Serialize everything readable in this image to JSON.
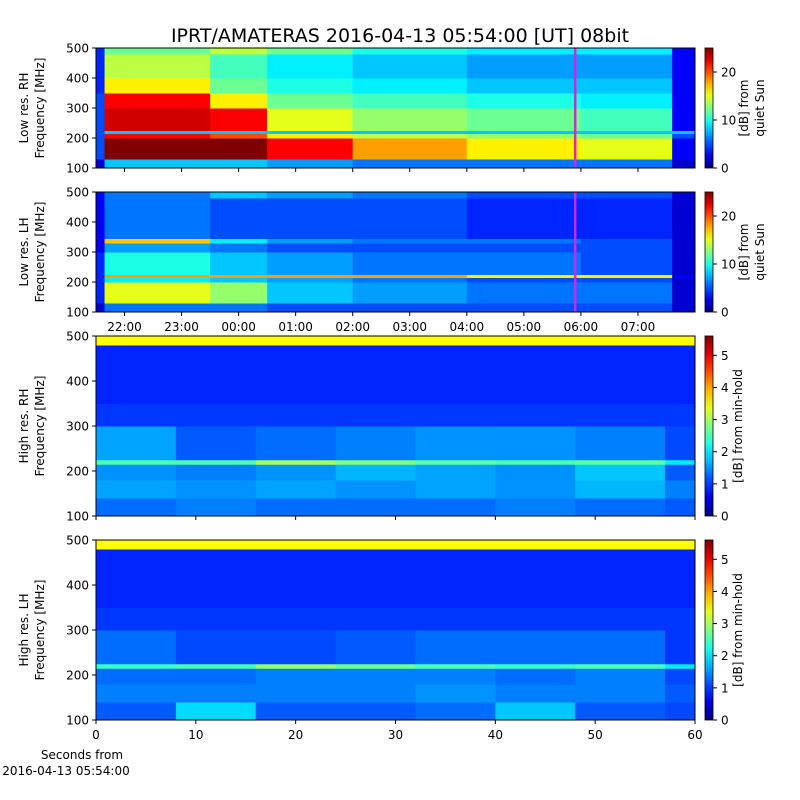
{
  "chart_data": [
    {
      "type": "heatmap",
      "title": "IPRT/AMATERAS 2016-04-13 05:54:00 [UT]   08bit",
      "ylabel": [
        "Low res. RH",
        "Frequency [MHz]"
      ],
      "colorbar_label": [
        "[dB] from",
        "quiet Sun"
      ],
      "xlim": [
        21.5,
        32
      ],
      "ylim": [
        100,
        500
      ],
      "yticks": [
        100,
        200,
        300,
        400,
        500
      ],
      "clim": [
        0,
        25
      ],
      "cticks": [
        0,
        10,
        20
      ],
      "colormap": "jet",
      "x_edges": [
        21.5,
        21.65,
        23.5,
        24.5,
        26,
        28,
        30,
        31.6,
        32
      ],
      "y_edges": [
        100,
        130,
        200,
        215,
        225,
        300,
        350,
        400,
        480,
        500
      ],
      "z": [
        [
          2,
          8,
          8,
          7,
          6,
          6,
          6,
          2
        ],
        [
          5,
          25,
          25,
          22,
          18,
          16,
          15,
          3
        ],
        [
          5,
          22,
          20,
          16,
          14,
          13,
          12,
          5
        ],
        [
          5,
          8,
          8,
          8,
          8,
          8,
          8,
          8
        ],
        [
          5,
          23,
          22,
          15,
          13,
          12,
          11,
          3
        ],
        [
          5,
          22,
          16,
          12,
          11,
          10,
          9,
          3
        ],
        [
          4,
          16,
          12,
          10,
          9,
          8,
          8,
          3
        ],
        [
          4,
          14,
          11,
          9,
          8,
          7,
          7,
          3
        ],
        [
          4,
          12,
          14,
          12,
          10,
          9,
          9,
          3
        ]
      ],
      "vline": 29.9,
      "vline_color": "#e020e0"
    },
    {
      "type": "heatmap",
      "ylabel": [
        "Low res. LH",
        "Frequency [MHz]"
      ],
      "colorbar_label": [
        "[dB] from",
        "quiet Sun"
      ],
      "xlim": [
        21.5,
        32
      ],
      "xticks": [
        {
          "value": 22,
          "label": "22:00"
        },
        {
          "value": 23,
          "label": "23:00"
        },
        {
          "value": 24,
          "label": "00:00"
        },
        {
          "value": 25,
          "label": "01:00"
        },
        {
          "value": 26,
          "label": "02:00"
        },
        {
          "value": 27,
          "label": "03:00"
        },
        {
          "value": 28,
          "label": "04:00"
        },
        {
          "value": 29,
          "label": "05:00"
        },
        {
          "value": 30,
          "label": "06:00"
        },
        {
          "value": 31,
          "label": "07:00"
        }
      ],
      "ylim": [
        100,
        500
      ],
      "yticks": [
        100,
        200,
        300,
        400,
        500
      ],
      "clim": [
        0,
        25
      ],
      "cticks": [
        0,
        10,
        20
      ],
      "colormap": "jet",
      "x_edges": [
        21.5,
        21.65,
        23.5,
        24.5,
        26,
        28,
        30,
        31.6,
        32
      ],
      "y_edges": [
        100,
        130,
        200,
        215,
        225,
        300,
        330,
        345,
        480,
        500
      ],
      "z": [
        [
          2,
          6,
          6,
          5,
          5,
          5,
          5,
          2
        ],
        [
          4,
          15,
          13,
          8,
          7,
          6,
          6,
          2
        ],
        [
          4,
          9,
          8,
          7,
          6,
          5,
          5,
          2
        ],
        [
          4,
          18,
          18,
          18,
          18,
          16,
          16,
          3
        ],
        [
          4,
          10,
          8,
          7,
          6,
          6,
          5,
          2
        ],
        [
          3,
          7,
          6,
          5,
          5,
          5,
          5,
          2
        ],
        [
          3,
          17,
          9,
          7,
          6,
          6,
          5,
          2
        ],
        [
          3,
          6,
          5,
          5,
          5,
          4,
          4,
          2
        ],
        [
          3,
          6,
          8,
          7,
          6,
          5,
          5,
          2
        ]
      ],
      "vline": 29.9,
      "vline_color": "#e020e0"
    },
    {
      "type": "heatmap",
      "ylabel": [
        "High res. RH",
        "Frequency [MHz]"
      ],
      "colorbar_label": [
        "[dB] from min-hold"
      ],
      "xlim": [
        0,
        60
      ],
      "ylim": [
        100,
        500
      ],
      "yticks": [
        100,
        200,
        300,
        400,
        500
      ],
      "clim": [
        0,
        5.6
      ],
      "cticks": [
        0,
        1,
        2,
        3,
        4,
        5
      ],
      "colormap": "jet",
      "x_edges": [
        0,
        8,
        16,
        24,
        32,
        40,
        48,
        57,
        60
      ],
      "y_edges": [
        100,
        140,
        180,
        215,
        225,
        300,
        350,
        480,
        500
      ],
      "z": [
        [
          1.3,
          1.4,
          1.3,
          1.3,
          1.3,
          1.4,
          1.3,
          1.2
        ],
        [
          1.6,
          1.5,
          1.6,
          1.5,
          1.6,
          1.5,
          1.7,
          1.4
        ],
        [
          1.5,
          1.4,
          1.5,
          1.7,
          1.6,
          1.5,
          1.8,
          1.2
        ],
        [
          2.5,
          2.5,
          3,
          2.8,
          2.6,
          2.5,
          2.6,
          2
        ],
        [
          1.6,
          1.2,
          1.3,
          1.4,
          1.5,
          1.5,
          1.4,
          1.1
        ],
        [
          1,
          1,
          1,
          1,
          1,
          1,
          1,
          1
        ],
        [
          0.9,
          0.9,
          0.9,
          0.9,
          0.9,
          0.9,
          0.9,
          0.9
        ],
        [
          3.5,
          3.5,
          3.5,
          3.5,
          3.5,
          3.5,
          3.5,
          3.5
        ]
      ]
    },
    {
      "type": "heatmap",
      "ylabel": [
        "High res. LH",
        "Frequency [MHz]"
      ],
      "colorbar_label": [
        "[dB] from min-hold"
      ],
      "xlabel": [
        "Seconds from",
        "2016-04-13 05:54:00"
      ],
      "xlim": [
        0,
        60
      ],
      "xticks": [
        0,
        10,
        20,
        30,
        40,
        50,
        60
      ],
      "ylim": [
        100,
        500
      ],
      "yticks": [
        100,
        200,
        300,
        400,
        500
      ],
      "clim": [
        0,
        5.6
      ],
      "cticks": [
        0,
        1,
        2,
        3,
        4,
        5
      ],
      "colormap": "jet",
      "x_edges": [
        0,
        8,
        16,
        24,
        32,
        40,
        48,
        57,
        60
      ],
      "y_edges": [
        100,
        140,
        180,
        215,
        225,
        300,
        350,
        480,
        500
      ],
      "z": [
        [
          1.2,
          1.9,
          1.2,
          1.2,
          1.3,
          1.8,
          1.2,
          1.1
        ],
        [
          1.4,
          1.4,
          1.4,
          1.4,
          1.5,
          1.4,
          1.4,
          1.2
        ],
        [
          1.3,
          1.3,
          1.4,
          1.4,
          1.4,
          1.3,
          1.4,
          1.1
        ],
        [
          2.4,
          2.5,
          2.9,
          2.7,
          2.5,
          2.4,
          2.5,
          2
        ],
        [
          1.3,
          1.1,
          1.1,
          1.2,
          1.3,
          1.3,
          1.3,
          1
        ],
        [
          1,
          1,
          1,
          1,
          1,
          1,
          1,
          1
        ],
        [
          0.9,
          0.9,
          0.9,
          0.9,
          0.9,
          0.9,
          0.9,
          0.9
        ],
        [
          3.5,
          3.5,
          3.5,
          3.5,
          3.5,
          3.5,
          3.5,
          3.5
        ]
      ]
    }
  ]
}
